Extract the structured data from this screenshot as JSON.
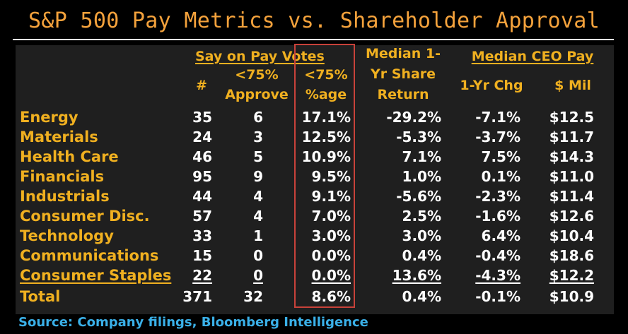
{
  "title": "S&P 500 Pay Metrics vs. Shareholder Approval",
  "source": "Source: Company filings, Bloomberg Intelligence",
  "chart_data": {
    "type": "table",
    "title": "S&P 500 Pay Metrics vs. Shareholder Approval",
    "group_headers": {
      "say_on_pay_votes": "Say on Pay Votes",
      "median_1yr_return": [
        "Median 1-",
        "Yr Share",
        "Return"
      ],
      "median_ceo_pay": "Median CEO Pay"
    },
    "column_headers": [
      "#",
      "<75%",
      "Approve",
      "<75%",
      "%age",
      "1-Yr Chg",
      "$ Mil"
    ],
    "rows": [
      {
        "sector": "Energy",
        "count": "35",
        "approve_lt75": "6",
        "pct": "17.1%",
        "ret": "-29.2%",
        "chg": "-7.1%",
        "pay": "$12.5"
      },
      {
        "sector": "Materials",
        "count": "24",
        "approve_lt75": "3",
        "pct": "12.5%",
        "ret": "-5.3%",
        "chg": "-3.7%",
        "pay": "$11.7"
      },
      {
        "sector": "Health Care",
        "count": "46",
        "approve_lt75": "5",
        "pct": "10.9%",
        "ret": "7.1%",
        "chg": "7.5%",
        "pay": "$14.3"
      },
      {
        "sector": "Financials",
        "count": "95",
        "approve_lt75": "9",
        "pct": "9.5%",
        "ret": "1.0%",
        "chg": "0.1%",
        "pay": "$11.0"
      },
      {
        "sector": "Industrials",
        "count": "44",
        "approve_lt75": "4",
        "pct": "9.1%",
        "ret": "-5.6%",
        "chg": "-2.3%",
        "pay": "$11.4"
      },
      {
        "sector": "Consumer Disc.",
        "count": "57",
        "approve_lt75": "4",
        "pct": "7.0%",
        "ret": "2.5%",
        "chg": "-1.6%",
        "pay": "$12.6"
      },
      {
        "sector": "Technology",
        "count": "33",
        "approve_lt75": "1",
        "pct": "3.0%",
        "ret": "3.0%",
        "chg": "6.4%",
        "pay": "$10.4"
      },
      {
        "sector": "Communications",
        "count": "15",
        "approve_lt75": "0",
        "pct": "0.0%",
        "ret": "0.4%",
        "chg": "-0.4%",
        "pay": "$18.6"
      },
      {
        "sector": "Consumer Staples",
        "count": "22",
        "approve_lt75": "0",
        "pct": "0.0%",
        "ret": "13.6%",
        "chg": "-4.3%",
        "pay": "$12.2"
      }
    ],
    "total": {
      "sector": "Total",
      "count": "371",
      "approve_lt75": "32",
      "pct": "8.6%",
      "ret": "0.4%",
      "chg": "-0.1%",
      "pay": "$10.9"
    },
    "highlight_column": "pct",
    "colors": {
      "label": "#f0b020",
      "value": "#ffffff",
      "title": "#f4a23c",
      "source": "#3ab0e8",
      "highlight_box": "#c8423a",
      "background": "#1f1f1f"
    }
  }
}
